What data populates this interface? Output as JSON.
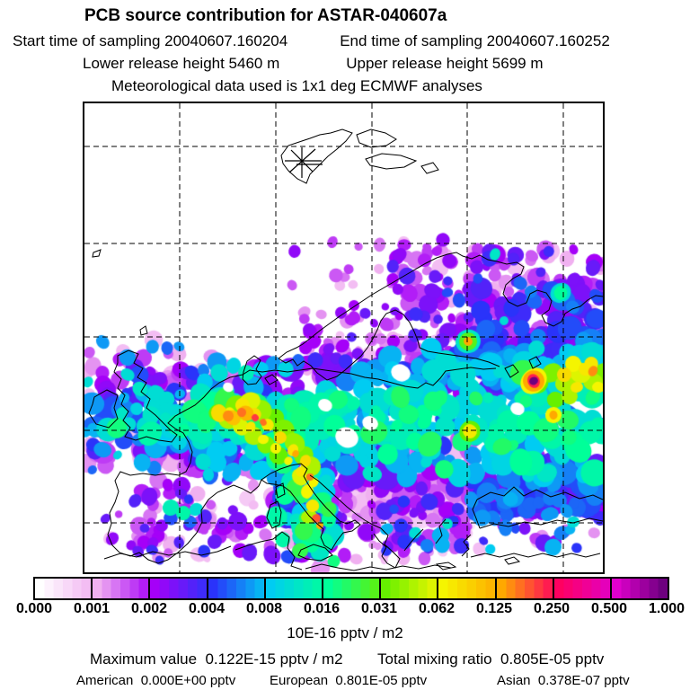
{
  "header": {
    "title": "PCB source contribution for ASTAR-040607a",
    "start_time": "Start time of sampling 20040607.160204",
    "end_time": "End time of sampling 20040607.160252",
    "lower_release": "Lower release height 5460 m",
    "upper_release": "Upper release height 5699 m",
    "met_data": "Meteorological data used is 1x1 deg ECMWF analyses"
  },
  "colorbar": {
    "tick_labels": [
      "0.000",
      "0.001",
      "0.002",
      "0.004",
      "0.008",
      "0.016",
      "0.031",
      "0.062",
      "0.125",
      "0.250",
      "0.500",
      "1.000"
    ],
    "units": "10E-16 pptv / m2",
    "anchor_colors": [
      "#ffffff",
      "#f0b0f0",
      "#a500f8",
      "#2a33fa",
      "#00ccf2",
      "#00ff99",
      "#66f000",
      "#f5f500",
      "#ffa800",
      "#ff0060",
      "#e000cc",
      "#570070"
    ]
  },
  "stats": {
    "maximum": "Maximum value  0.122E-15 pptv / m2",
    "total": "Total mixing ratio  0.805E-05 pptv",
    "american": "American  0.000E+00 pptv",
    "european": "European  0.801E-05 pptv",
    "asian": "Asian  0.378E-07 pptv"
  },
  "map": {
    "marker": "release-location-star (Svalbard)",
    "grid_style": "dashed lat/lon graticule",
    "line_color": "#000000"
  },
  "chart_data": {
    "type": "heatmap",
    "subtype": "filled-contour-geographic-map",
    "title": "PCB source contribution for ASTAR-040607a",
    "region": "Europe / North Atlantic with Svalbard release point marked by star",
    "colorbar_levels": [
      0.0,
      0.001,
      0.002,
      0.004,
      0.008,
      0.016,
      0.031,
      0.062,
      0.125,
      0.25,
      0.5,
      1.0
    ],
    "units": "10E-16 pptv / m2",
    "palette_anchor_colors": [
      "#ffffff",
      "#f0b0f0",
      "#a500f8",
      "#2a33fa",
      "#00ccf2",
      "#00ff99",
      "#66f000",
      "#f5f500",
      "#ffa800",
      "#ff0060",
      "#e000cc",
      "#570070"
    ],
    "annotations": {
      "start_time_of_sampling": "20040607.160204",
      "end_time_of_sampling": "20040607.160252",
      "lower_release_height_m": 5460,
      "upper_release_height_m": 5699,
      "meteorology": "1x1 deg ECMWF analyses",
      "maximum_value": "0.122E-15 pptv / m2",
      "total_mixing_ratio": "0.805E-05 pptv",
      "american_contribution": "0.000E+00 pptv",
      "european_contribution": "0.801E-05 pptv",
      "asian_contribution": "0.378E-07 pptv"
    },
    "pattern_description": "High-contribution band (cyan-green-yellow with orange/red cores) across central Europe from UK/Benelux eastward, branch down Italy, purple/magenta fringes north and south, white over Svalbard/Atlantic/Iberia interior"
  }
}
